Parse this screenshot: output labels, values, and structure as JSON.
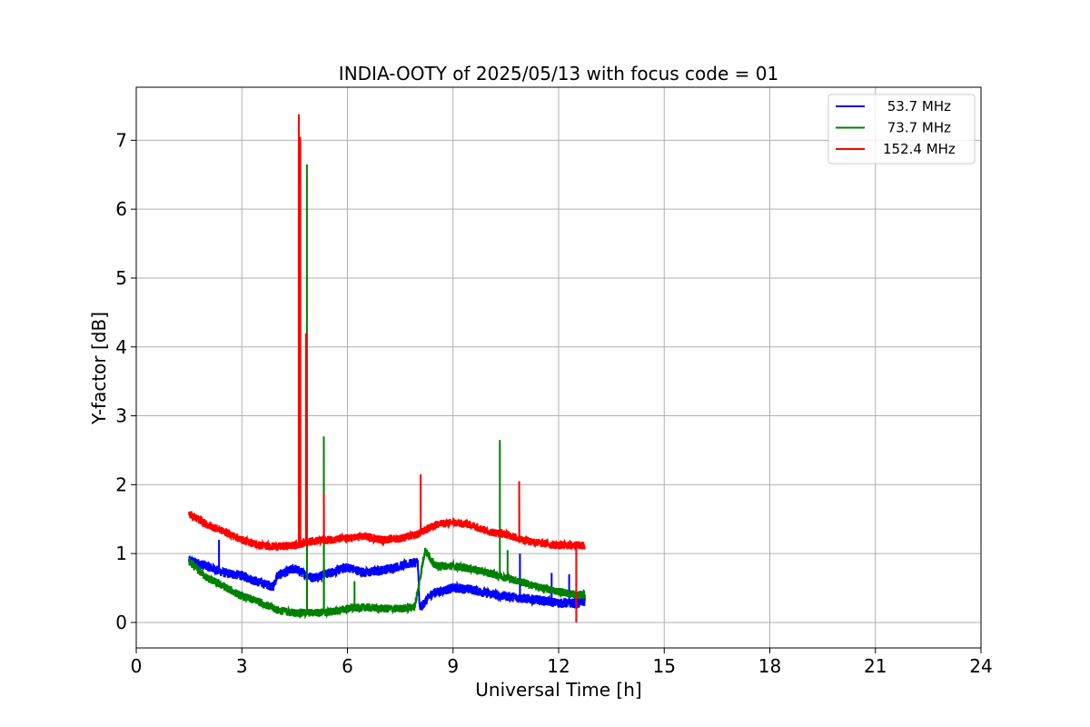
{
  "chart_data": {
    "type": "line",
    "title": "INDIA-OOTY of 2025/05/13 with focus code = 01",
    "xlabel": "Universal Time [h]",
    "ylabel": "Y-factor [dB]",
    "xlim": [
      0,
      24
    ],
    "ylim": [
      -0.37,
      7.77
    ],
    "xticks": [
      "0",
      "3",
      "6",
      "9",
      "12",
      "15",
      "18",
      "21",
      "24"
    ],
    "yticks": [
      "0",
      "1",
      "2",
      "3",
      "4",
      "5",
      "6",
      "7"
    ],
    "grid": true,
    "legend_position": "top-right",
    "series": [
      {
        "name": " 53.7 MHz",
        "color": "#0000ff",
        "noise": 0.07,
        "points": [
          [
            1.5,
            0.9
          ],
          [
            2.0,
            0.82
          ],
          [
            2.5,
            0.72
          ],
          [
            3.0,
            0.68
          ],
          [
            3.5,
            0.58
          ],
          [
            3.9,
            0.52
          ],
          [
            4.0,
            0.68
          ],
          [
            4.5,
            0.78
          ],
          [
            5.0,
            0.65
          ],
          [
            5.5,
            0.72
          ],
          [
            6.0,
            0.8
          ],
          [
            6.5,
            0.72
          ],
          [
            7.0,
            0.76
          ],
          [
            7.5,
            0.82
          ],
          [
            8.0,
            0.88
          ],
          [
            8.05,
            0.2
          ],
          [
            8.4,
            0.42
          ],
          [
            9.0,
            0.5
          ],
          [
            9.5,
            0.48
          ],
          [
            10.0,
            0.42
          ],
          [
            10.5,
            0.38
          ],
          [
            11.0,
            0.35
          ],
          [
            11.5,
            0.32
          ],
          [
            12.0,
            0.28
          ],
          [
            12.5,
            0.28
          ],
          [
            12.75,
            0.3
          ]
        ],
        "spikes": [
          [
            2.35,
            1.2
          ],
          [
            10.9,
            1.0
          ],
          [
            11.8,
            0.72
          ],
          [
            12.3,
            0.7
          ]
        ]
      },
      {
        "name": " 73.7 MHz",
        "color": "#008000",
        "noise": 0.06,
        "points": [
          [
            1.5,
            0.88
          ],
          [
            2.0,
            0.65
          ],
          [
            2.5,
            0.52
          ],
          [
            3.0,
            0.38
          ],
          [
            3.5,
            0.3
          ],
          [
            4.0,
            0.18
          ],
          [
            4.5,
            0.14
          ],
          [
            5.0,
            0.14
          ],
          [
            5.5,
            0.15
          ],
          [
            6.0,
            0.2
          ],
          [
            6.5,
            0.22
          ],
          [
            7.0,
            0.2
          ],
          [
            7.5,
            0.2
          ],
          [
            7.9,
            0.22
          ],
          [
            8.0,
            0.45
          ],
          [
            8.2,
            1.05
          ],
          [
            8.5,
            0.82
          ],
          [
            9.0,
            0.82
          ],
          [
            9.5,
            0.78
          ],
          [
            10.0,
            0.72
          ],
          [
            10.5,
            0.65
          ],
          [
            11.0,
            0.58
          ],
          [
            11.5,
            0.5
          ],
          [
            12.0,
            0.45
          ],
          [
            12.5,
            0.4
          ],
          [
            12.75,
            0.4
          ]
        ],
        "spikes": [
          [
            4.85,
            6.65
          ],
          [
            5.33,
            2.7
          ],
          [
            6.2,
            0.6
          ],
          [
            10.33,
            2.65
          ],
          [
            10.55,
            1.05
          ]
        ]
      },
      {
        "name": "152.4 MHz",
        "color": "#ff0000",
        "noise": 0.06,
        "points": [
          [
            1.5,
            1.58
          ],
          [
            2.0,
            1.42
          ],
          [
            2.5,
            1.32
          ],
          [
            3.0,
            1.2
          ],
          [
            3.5,
            1.12
          ],
          [
            4.0,
            1.1
          ],
          [
            4.5,
            1.12
          ],
          [
            5.0,
            1.18
          ],
          [
            5.5,
            1.2
          ],
          [
            6.0,
            1.22
          ],
          [
            6.5,
            1.25
          ],
          [
            7.0,
            1.2
          ],
          [
            7.5,
            1.22
          ],
          [
            8.0,
            1.28
          ],
          [
            8.5,
            1.42
          ],
          [
            9.0,
            1.45
          ],
          [
            9.5,
            1.42
          ],
          [
            10.0,
            1.32
          ],
          [
            10.5,
            1.28
          ],
          [
            11.0,
            1.2
          ],
          [
            11.5,
            1.15
          ],
          [
            12.0,
            1.12
          ],
          [
            12.5,
            1.12
          ],
          [
            12.75,
            1.12
          ]
        ],
        "spikes": [
          [
            4.62,
            7.38
          ],
          [
            4.66,
            7.05
          ],
          [
            4.82,
            4.2
          ],
          [
            5.33,
            1.88
          ],
          [
            8.08,
            2.15
          ],
          [
            10.88,
            2.05
          ],
          [
            12.5,
            0.0
          ]
        ]
      }
    ]
  }
}
